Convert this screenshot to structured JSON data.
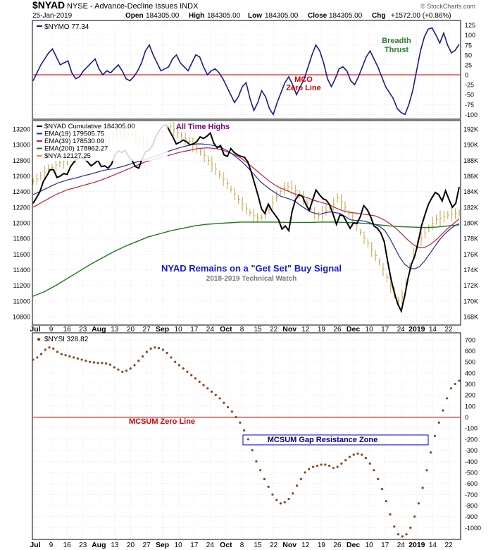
{
  "header": {
    "symbol": "$NYAD",
    "title": "NYSE - Advance-Decline Issues INDX",
    "date": "25-Jan-2019",
    "open_label": "Open",
    "open": "184305.00",
    "high_label": "High",
    "high": "184305.00",
    "low_label": "Low",
    "low": "184305.00",
    "close_label": "Close",
    "close": "184305.00",
    "chg_label": "Chg",
    "chg": "+1572.00 (+0.86%)",
    "credit": "© StockCharts.com"
  },
  "colors": {
    "nymo": "#1a1a8c",
    "nyad": "#000000",
    "ema19": "#2a2aa0",
    "ema39": "#c0203a",
    "ema200": "#1a7a1a",
    "nya": "#c8a040",
    "nysi": "#8b4513",
    "zero_line": "#cc0000",
    "mco_label": "#cc0000",
    "breadth": "#2e7d2e",
    "signal": "#1a1ad0",
    "subtitle": "#777777",
    "ath": "#800080",
    "grid": "#dddddd",
    "zone": "#0000cc"
  },
  "chart_data": [
    {
      "type": "line",
      "name": "McClellan Oscillator panel",
      "legend": "$NYMO 77.34",
      "ylim": [
        -110,
        135
      ],
      "yticks": [
        125,
        100,
        75,
        50,
        25,
        0,
        -25,
        -50,
        -75,
        -100
      ],
      "x_start": "2018-07-02",
      "x_step_days": 1,
      "series": [
        {
          "name": "$NYMO",
          "values": [
            -15,
            5,
            25,
            40,
            55,
            65,
            45,
            25,
            30,
            35,
            5,
            -10,
            -5,
            10,
            20,
            30,
            40,
            15,
            0,
            10,
            5,
            15,
            25,
            10,
            -10,
            -15,
            -5,
            10,
            30,
            60,
            75,
            50,
            30,
            10,
            15,
            20,
            40,
            50,
            30,
            20,
            10,
            30,
            50,
            45,
            20,
            0,
            10,
            15,
            5,
            -10,
            -30,
            -50,
            -70,
            -55,
            -30,
            -20,
            -60,
            -90,
            -70,
            -40,
            -55,
            -85,
            -100,
            -70,
            -45,
            -20,
            -5,
            -25,
            -50,
            -30,
            -10,
            20,
            50,
            75,
            60,
            30,
            -10,
            -30,
            -10,
            15,
            20,
            10,
            -15,
            -25,
            -5,
            20,
            45,
            60,
            40,
            20,
            -5,
            -30,
            -45,
            -60,
            -85,
            -95,
            -100,
            -75,
            -40,
            10,
            60,
            95,
            115,
            118,
            100,
            80,
            105,
            75,
            55,
            62,
            77
          ]
        }
      ],
      "annotations": [
        {
          "text": "Breadth",
          "color": "#2e7d2e"
        },
        {
          "text": "Thrust",
          "color": "#2e7d2e"
        },
        {
          "text": "MCO",
          "color": "#cc0000"
        },
        {
          "text": "Zero Line",
          "color": "#cc0000"
        }
      ]
    },
    {
      "type": "line",
      "name": "NYAD Cumulative panel",
      "ylim": [
        10700,
        13300
      ],
      "yticks_left": [
        13200,
        13000,
        12800,
        12600,
        12400,
        12200,
        12000,
        11800,
        11600,
        11400,
        11200,
        11000,
        10800
      ],
      "yticks_right": [
        "192K",
        "190K",
        "188K",
        "186K",
        "184K",
        "182K",
        "180K",
        "178K",
        "176K",
        "174K",
        "172K",
        "170K",
        "168K"
      ],
      "legend": [
        {
          "label": "$NYAD Cumulative 184305.00",
          "color": "#000000"
        },
        {
          "label": "EMA(19) 179505.75",
          "color": "#2a2aa0"
        },
        {
          "label": "EMA(39) 178530.09",
          "color": "#c0203a"
        },
        {
          "label": "EMA(200) 178962.27",
          "color": "#1a7a1a"
        },
        {
          "label": "$NYA 12127.25",
          "color": "#c8a040"
        }
      ],
      "series": [
        {
          "name": "$NYAD Cumulative",
          "values": [
            12250,
            12320,
            12400,
            12530,
            12600,
            12680,
            12680,
            12580,
            12600,
            12630,
            12620,
            12720,
            12780,
            12820,
            12830,
            12820,
            12780,
            12730,
            12760,
            12800,
            12720,
            12730,
            12700,
            12750,
            12870,
            12920,
            12900,
            12930,
            12850,
            12800,
            12720,
            12700,
            12820,
            12910,
            12930,
            12990,
            13100,
            13180,
            13240,
            13260,
            13180,
            13100,
            13010,
            13030,
            13060,
            13040,
            13000,
            13010,
            13040,
            13100,
            13080,
            13110,
            13150,
            13020,
            12960,
            12990,
            12870,
            12850,
            12950,
            12900,
            12870,
            12850,
            12840,
            12780,
            12650,
            12500,
            12350,
            12180,
            12120,
            12240,
            12160,
            12100,
            12040,
            11920,
            11960,
            11900,
            12150,
            12300,
            12360,
            12340,
            12240,
            12160,
            12290,
            12420,
            12360,
            12310,
            12290,
            12230,
            12110,
            11980,
            12100,
            12090,
            12010,
            11930,
            12000,
            11990,
            12080,
            12220,
            12170,
            12080,
            11960,
            11930,
            11870,
            11760,
            11510,
            11280,
            11100,
            10960,
            10870,
            11060,
            11290,
            11470,
            11580,
            11760,
            11970,
            12110,
            12240,
            12320,
            12390,
            12360,
            12280,
            12410,
            12300,
            12200,
            12250,
            12460
          ]
        },
        {
          "name": "EMA(19)",
          "values": [
            12360,
            12390,
            12420,
            12450,
            12480,
            12510,
            12530,
            12550,
            12565,
            12580,
            12600,
            12615,
            12630,
            12650,
            12670,
            12680,
            12690,
            12705,
            12720,
            12740,
            12760,
            12780,
            12800,
            12820,
            12840,
            12860,
            12885,
            12910,
            12930,
            12950,
            12970,
            12985,
            13000,
            13010,
            13010,
            13005,
            12995,
            12980,
            12960,
            12930,
            12890,
            12840,
            12790,
            12730,
            12660,
            12590,
            12520,
            12470,
            12420,
            12380,
            12340,
            12320,
            12300,
            12270,
            12220,
            12180,
            12140,
            12120,
            12110,
            12130,
            12140,
            12130,
            12120,
            12080,
            12040,
            12030,
            12030,
            12020,
            12000,
            11980,
            11950,
            11900,
            11800,
            11680,
            11560,
            11470,
            11420,
            11410,
            11440,
            11510,
            11600,
            11690,
            11780,
            11850,
            11910,
            11960,
            11990
          ]
        },
        {
          "name": "EMA(39)",
          "values": [
            12200,
            12240,
            12280,
            12320,
            12360,
            12390,
            12420,
            12440,
            12460,
            12480,
            12500,
            12520,
            12545,
            12570,
            12600,
            12630,
            12660,
            12690,
            12720,
            12750,
            12780,
            12800,
            12820,
            12840,
            12860,
            12880,
            12900,
            12915,
            12930,
            12945,
            12955,
            12960,
            12955,
            12945,
            12925,
            12900,
            12870,
            12830,
            12780,
            12720,
            12660,
            12600,
            12540,
            12490,
            12450,
            12420,
            12390,
            12360,
            12340,
            12320,
            12290,
            12270,
            12250,
            12225,
            12190,
            12160,
            12140,
            12130,
            12120,
            12110,
            12100,
            12090,
            12060,
            12020,
            11970,
            11910,
            11840,
            11770,
            11710,
            11680,
            11690,
            11730,
            11790,
            11860,
            11930,
            11990,
            12050
          ]
        },
        {
          "name": "EMA(200)",
          "values": [
            11060,
            11120,
            11200,
            11290,
            11380,
            11470,
            11550,
            11630,
            11700,
            11760,
            11820,
            11860,
            11900,
            11930,
            11960,
            11980,
            11990,
            12000,
            12010,
            12010,
            12010,
            12010,
            12005,
            12005,
            12005,
            12010,
            12010,
            12005,
            12000,
            11990,
            11975,
            11960,
            11950,
            11945,
            11940,
            11945,
            11960,
            11975
          ]
        },
        {
          "name": "$NYA",
          "values": [
            12530,
            12560,
            12600,
            12640,
            12680,
            12710,
            12740,
            12770,
            12790,
            12810,
            12830,
            12840,
            12860,
            12880,
            12900,
            12920,
            12950,
            12980,
            13010,
            13040,
            13070,
            13100,
            13120,
            13140,
            13160,
            13170,
            13140,
            13090,
            13060,
            13040,
            13010,
            12990,
            13050,
            13110,
            13160,
            13190,
            13230,
            13200,
            13150,
            13120,
            13080,
            13040,
            13000,
            12960,
            12910,
            12860,
            12800,
            12750,
            12690,
            12620,
            12560,
            12500,
            12430,
            12370,
            12300,
            12240,
            12180,
            12130,
            12090,
            12060,
            12070,
            12120,
            12170,
            12260,
            12340,
            12400,
            12440,
            12460,
            12450,
            12410,
            12370,
            12320,
            12250,
            12170,
            12120,
            12090,
            12120,
            12160,
            12200,
            12240,
            12320,
            12270,
            12200,
            12120,
            12040,
            11960,
            11880,
            11810,
            11740,
            11660,
            11580,
            11500,
            11400,
            11300,
            11200,
            11100,
            11000,
            11050,
            11220,
            11440,
            11600,
            11720,
            11800,
            11870,
            11930,
            11990,
            12040,
            12060,
            12080,
            12100,
            12110,
            12120,
            12127
          ]
        }
      ],
      "annotations": [
        {
          "text": "All Time Highs",
          "color": "#800080"
        },
        {
          "text": "NYAD Remains on a \"Get Set\" Buy Signal",
          "color": "#1a1ad0"
        },
        {
          "text": "2018-2019 Technical Watch",
          "color": "#777777"
        }
      ]
    },
    {
      "type": "scatter",
      "name": "McClellan Summation Index panel",
      "legend": "$NYSI 328.82",
      "ylim": [
        -1100,
        750
      ],
      "yticks": [
        700,
        600,
        500,
        400,
        300,
        200,
        100,
        0,
        -100,
        -200,
        -300,
        -400,
        -500,
        -600,
        -700,
        -800,
        -900,
        -1000
      ],
      "series": [
        {
          "name": "$NYSI",
          "values": [
            520,
            540,
            570,
            610,
            630,
            620,
            590,
            570,
            560,
            550,
            540,
            530,
            520,
            510,
            500,
            495,
            490,
            490,
            485,
            475,
            450,
            430,
            410,
            420,
            440,
            470,
            510,
            550,
            590,
            620,
            630,
            625,
            610,
            580,
            540,
            500,
            470,
            440,
            410,
            380,
            350,
            320,
            290,
            260,
            230,
            200,
            170,
            130,
            90,
            50,
            0,
            -50,
            -120,
            -200,
            -300,
            -400,
            -480,
            -560,
            -630,
            -700,
            -750,
            -780,
            -770,
            -740,
            -690,
            -620,
            -560,
            -500,
            -470,
            -450,
            -440,
            -430,
            -430,
            -440,
            -460,
            -450,
            -420,
            -390,
            -360,
            -340,
            -330,
            -340,
            -370,
            -420,
            -480,
            -560,
            -650,
            -760,
            -880,
            -990,
            -1060,
            -1080,
            -1060,
            -1000,
            -900,
            -780,
            -640,
            -480,
            -320,
            -170,
            -50,
            60,
            170,
            260,
            300,
            329
          ]
        }
      ],
      "annotations": [
        {
          "text": "MCSUM Zero Line",
          "color": "#cc0000"
        },
        {
          "text": "MCSUM Gap Resistance Zone",
          "color": "#000080"
        }
      ]
    }
  ],
  "x_axis": {
    "labels": [
      "Jul",
      "9",
      "16",
      "23",
      "Aug",
      "13",
      "20",
      "27",
      "Sep",
      "10",
      "17",
      "24",
      "Oct",
      "8",
      "15",
      "22",
      "Nov",
      "12",
      "19",
      "26",
      "Dec",
      "10",
      "17",
      "24",
      "2019",
      "14",
      "22"
    ],
    "bold": [
      "Jul",
      "Aug",
      "Sep",
      "Oct",
      "Nov",
      "Dec",
      "2019"
    ]
  }
}
